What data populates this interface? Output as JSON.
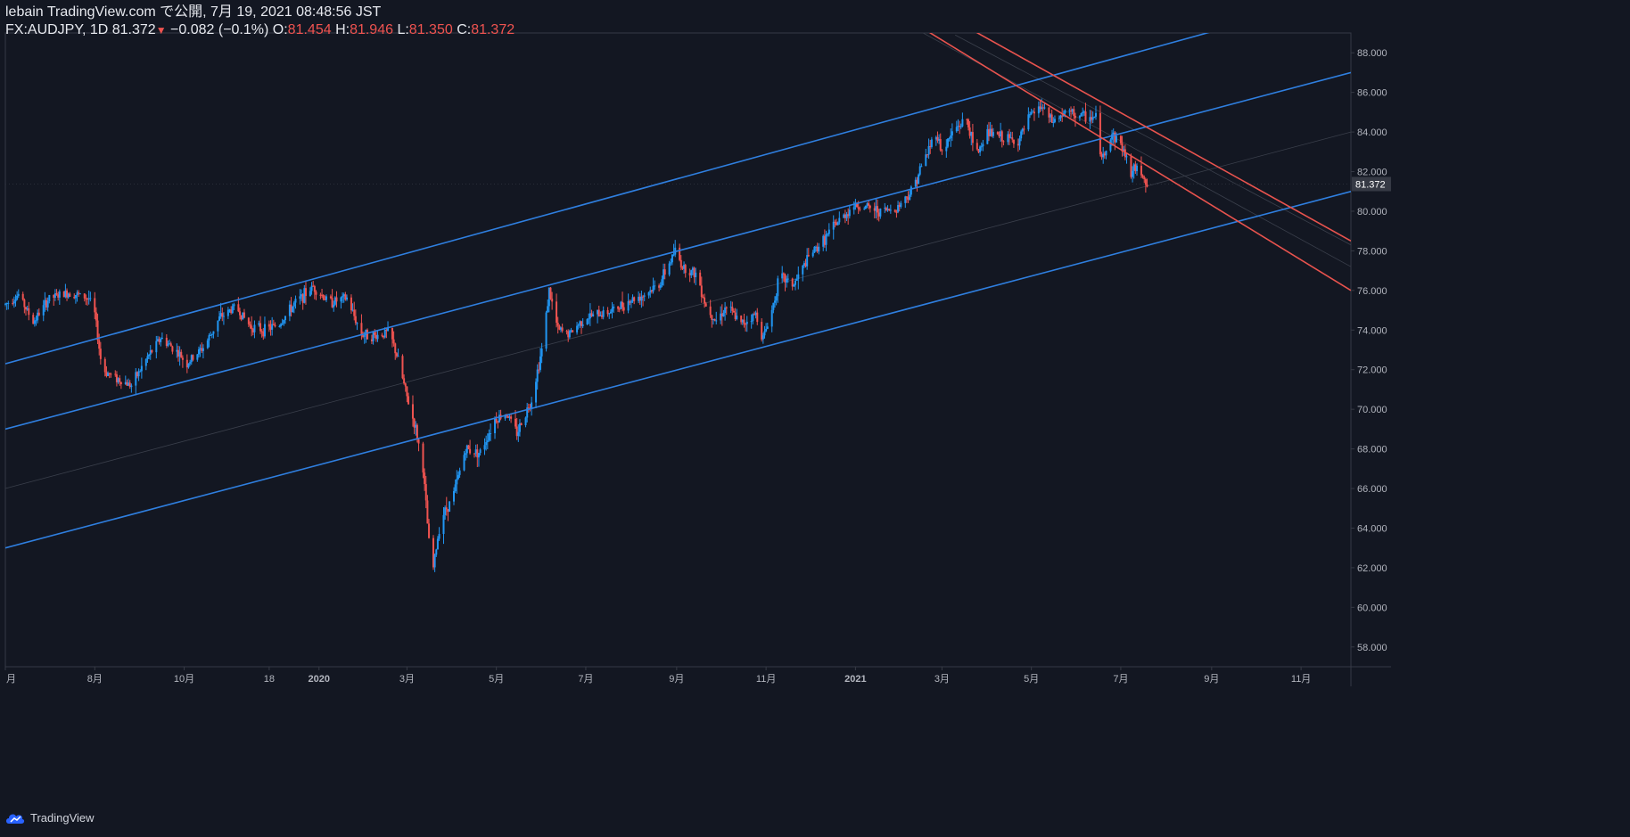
{
  "header": {
    "published_line": "lebain TradingView.com で公開, 7月 19, 2021 08:48:56 JST",
    "symbol": "FX:AUDJPY, 1D",
    "last": "81.372",
    "arrow": "▼",
    "change": "−0.082 (−0.1%)",
    "o_label": "O:",
    "o": "81.454",
    "h_label": "H:",
    "h": "81.946",
    "l_label": "L:",
    "l": "81.350",
    "c_label": "C:",
    "c": "81.372"
  },
  "footer": {
    "brand": "TradingView",
    "logo_icon": "tradingview-cloud-icon"
  },
  "colors": {
    "background": "#131722",
    "up": "#2196f3",
    "down": "#ef5350",
    "channel_line": "#2f7fe0",
    "resistance_line": "#e8534e",
    "axis_text": "#b2b5be",
    "border": "#363a45"
  },
  "chart_data": {
    "type": "candlestick",
    "symbol": "FX:AUDJPY",
    "interval": "1D",
    "ylim": [
      57,
      89
    ],
    "ytick_values": [
      58,
      60,
      62,
      64,
      66,
      68,
      70,
      72,
      74,
      76,
      78,
      80,
      82,
      84,
      86,
      88
    ],
    "ytick_labels": [
      "58.000",
      "60.000",
      "62.000",
      "64.000",
      "66.000",
      "68.000",
      "70.000",
      "72.000",
      "74.000",
      "76.000",
      "78.000",
      "80.000",
      "82.000",
      "84.000",
      "86.000",
      "88.000"
    ],
    "xlim": [
      "2019-06-01",
      "2021-12-05"
    ],
    "xtick_dates": [
      "2019-06-01",
      "2019-08-01",
      "2019-10-01",
      "2019-11-28",
      "2020-01-01",
      "2020-03-01",
      "2020-05-01",
      "2020-07-01",
      "2020-09-01",
      "2020-11-01",
      "2021-01-01",
      "2021-03-01",
      "2021-05-01",
      "2021-07-01",
      "2021-09-01",
      "2021-11-01"
    ],
    "xtick_labels": [
      "月",
      "8月",
      "10月",
      "18",
      "2020",
      "3月",
      "5月",
      "7月",
      "9月",
      "11月",
      "2021",
      "3月",
      "5月",
      "7月",
      "9月",
      "11月"
    ],
    "xtick_bold": [
      false,
      false,
      false,
      false,
      true,
      false,
      false,
      false,
      false,
      false,
      true,
      false,
      false,
      false,
      false,
      false
    ],
    "last_price": 81.372,
    "price_path": [
      [
        "2019-06-01",
        75.3
      ],
      [
        "2019-06-10",
        75.8
      ],
      [
        "2019-06-20",
        74.4
      ],
      [
        "2019-07-01",
        75.6
      ],
      [
        "2019-07-15",
        75.9
      ],
      [
        "2019-07-28",
        75.6
      ],
      [
        "2019-08-01",
        74.8
      ],
      [
        "2019-08-06",
        72.0
      ],
      [
        "2019-08-15",
        71.6
      ],
      [
        "2019-08-26",
        71.2
      ],
      [
        "2019-09-05",
        72.5
      ],
      [
        "2019-09-15",
        73.6
      ],
      [
        "2019-09-25",
        73.0
      ],
      [
        "2019-10-03",
        72.3
      ],
      [
        "2019-10-15",
        73.2
      ],
      [
        "2019-10-25",
        74.6
      ],
      [
        "2019-11-05",
        75.2
      ],
      [
        "2019-11-15",
        74.2
      ],
      [
        "2019-11-25",
        74.0
      ],
      [
        "2019-12-05",
        74.3
      ],
      [
        "2019-12-15",
        75.3
      ],
      [
        "2019-12-28",
        76.2
      ],
      [
        "2020-01-08",
        75.4
      ],
      [
        "2020-01-20",
        75.6
      ],
      [
        "2020-01-30",
        73.8
      ],
      [
        "2020-02-08",
        73.7
      ],
      [
        "2020-02-18",
        73.9
      ],
      [
        "2020-02-24",
        72.5
      ],
      [
        "2020-03-01",
        70.6
      ],
      [
        "2020-03-07",
        69.0
      ],
      [
        "2020-03-12",
        67.0
      ],
      [
        "2020-03-16",
        63.3
      ],
      [
        "2020-03-19",
        62.0
      ],
      [
        "2020-03-24",
        64.5
      ],
      [
        "2020-04-01",
        65.5
      ],
      [
        "2020-04-10",
        68.0
      ],
      [
        "2020-04-20",
        67.8
      ],
      [
        "2020-04-30",
        69.5
      ],
      [
        "2020-05-08",
        69.8
      ],
      [
        "2020-05-15",
        68.8
      ],
      [
        "2020-05-25",
        70.5
      ],
      [
        "2020-06-01",
        73.0
      ],
      [
        "2020-06-06",
        76.0
      ],
      [
        "2020-06-12",
        74.0
      ],
      [
        "2020-06-20",
        73.8
      ],
      [
        "2020-06-30",
        74.6
      ],
      [
        "2020-07-10",
        74.8
      ],
      [
        "2020-07-20",
        75.0
      ],
      [
        "2020-07-31",
        75.5
      ],
      [
        "2020-08-10",
        75.8
      ],
      [
        "2020-08-20",
        76.3
      ],
      [
        "2020-08-31",
        78.0
      ],
      [
        "2020-09-05",
        77.2
      ],
      [
        "2020-09-15",
        76.8
      ],
      [
        "2020-09-21",
        75.2
      ],
      [
        "2020-09-28",
        74.5
      ],
      [
        "2020-10-05",
        75.2
      ],
      [
        "2020-10-15",
        74.3
      ],
      [
        "2020-10-25",
        74.8
      ],
      [
        "2020-10-30",
        73.6
      ],
      [
        "2020-11-05",
        75.0
      ],
      [
        "2020-11-10",
        76.7
      ],
      [
        "2020-11-20",
        76.3
      ],
      [
        "2020-12-01",
        77.8
      ],
      [
        "2020-12-10",
        78.5
      ],
      [
        "2020-12-18",
        79.3
      ],
      [
        "2020-12-31",
        80.3
      ],
      [
        "2021-01-08",
        80.2
      ],
      [
        "2021-01-18",
        80.0
      ],
      [
        "2021-01-28",
        80.1
      ],
      [
        "2021-02-08",
        81.0
      ],
      [
        "2021-02-18",
        82.8
      ],
      [
        "2021-02-25",
        84.0
      ],
      [
        "2021-03-01",
        83.0
      ],
      [
        "2021-03-10",
        84.2
      ],
      [
        "2021-03-18",
        84.6
      ],
      [
        "2021-03-24",
        82.8
      ],
      [
        "2021-04-01",
        84.0
      ],
      [
        "2021-04-12",
        83.7
      ],
      [
        "2021-04-22",
        83.5
      ],
      [
        "2021-04-30",
        84.8
      ],
      [
        "2021-05-08",
        85.3
      ],
      [
        "2021-05-15",
        84.5
      ],
      [
        "2021-05-25",
        85.0
      ],
      [
        "2021-06-05",
        84.8
      ],
      [
        "2021-06-14",
        84.7
      ],
      [
        "2021-06-18",
        82.6
      ],
      [
        "2021-06-25",
        83.9
      ],
      [
        "2021-07-01",
        83.4
      ],
      [
        "2021-07-08",
        82.0
      ],
      [
        "2021-07-14",
        82.2
      ],
      [
        "2021-07-19",
        81.372
      ]
    ],
    "trendlines": [
      {
        "role": "channel-upper",
        "color": "#2f7fe0",
        "p1": [
          "2019-06-01",
          72.3
        ],
        "p2": [
          "2021-12-05",
          91.0
        ]
      },
      {
        "role": "channel-middle",
        "color": "#2f7fe0",
        "p1": [
          "2019-06-01",
          69.0
        ],
        "p2": [
          "2021-12-05",
          87.0
        ]
      },
      {
        "role": "channel-lower",
        "color": "#2f7fe0",
        "p1": [
          "2019-06-01",
          63.0
        ],
        "p2": [
          "2021-12-05",
          81.0
        ]
      },
      {
        "role": "down-upper",
        "color": "#e8534e",
        "p1": [
          "2021-03-01",
          90.0
        ],
        "p2": [
          "2021-12-05",
          78.5
        ]
      },
      {
        "role": "down-lower",
        "color": "#e8534e",
        "p1": [
          "2021-01-30",
          90.0
        ],
        "p2": [
          "2021-12-05",
          76.0
        ]
      }
    ],
    "faint_lines": [
      {
        "p1": [
          "2019-06-01",
          66.0
        ],
        "p2": [
          "2021-12-05",
          84.0
        ]
      },
      {
        "p1": [
          "2021-01-10",
          90.5
        ],
        "p2": [
          "2021-12-05",
          77.2
        ]
      },
      {
        "p1": [
          "2021-03-10",
          88.9
        ],
        "p2": [
          "2021-12-05",
          78.3
        ]
      }
    ]
  }
}
